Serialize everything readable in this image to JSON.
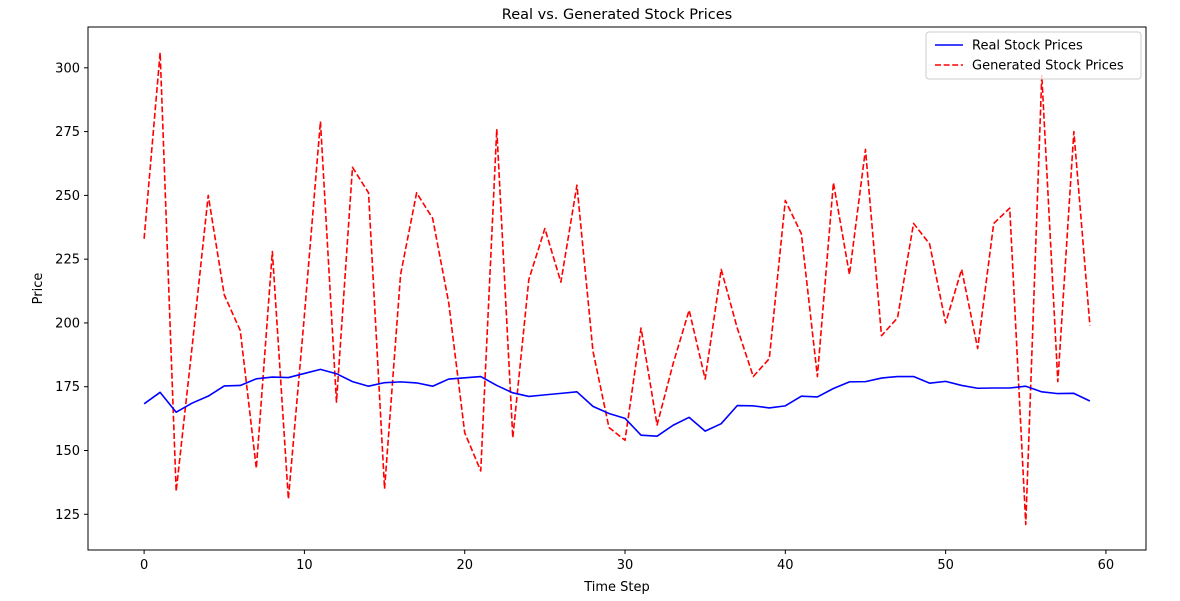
{
  "chart_data": {
    "type": "line",
    "title": "Real vs. Generated Stock Prices",
    "xlabel": "Time Step",
    "ylabel": "Price",
    "xlim": [
      -3.5,
      62.5
    ],
    "ylim": [
      111,
      316
    ],
    "xticks": [
      0,
      10,
      20,
      30,
      40,
      50,
      60
    ],
    "yticks": [
      125,
      150,
      175,
      200,
      225,
      250,
      275,
      300
    ],
    "grid": false,
    "legend_position": "top-right",
    "x": [
      0,
      1,
      2,
      3,
      4,
      5,
      6,
      7,
      8,
      9,
      10,
      11,
      12,
      13,
      14,
      15,
      16,
      17,
      18,
      19,
      20,
      21,
      22,
      23,
      24,
      25,
      26,
      27,
      28,
      29,
      30,
      31,
      32,
      33,
      34,
      35,
      36,
      37,
      38,
      39,
      40,
      41,
      42,
      43,
      44,
      45,
      46,
      47,
      48,
      49,
      50,
      51,
      52,
      53,
      54,
      55,
      56,
      57,
      58,
      59
    ],
    "series": [
      {
        "name": "Real Stock Prices",
        "color": "#0000ff",
        "style": "solid",
        "values": [
          168.3,
          172.8,
          165.0,
          168.6,
          171.3,
          175.3,
          175.5,
          178.1,
          178.8,
          178.6,
          180.2,
          181.8,
          180.1,
          177.0,
          175.2,
          176.6,
          176.9,
          176.5,
          175.2,
          178.0,
          178.5,
          179.0,
          175.5,
          172.6,
          171.2,
          171.8,
          172.4,
          173.0,
          167.3,
          164.5,
          162.6,
          156.0,
          155.6,
          159.9,
          163.0,
          157.6,
          160.5,
          167.6,
          167.5,
          166.7,
          167.5,
          171.3,
          171.0,
          174.3,
          176.9,
          177.0,
          178.4,
          179.0,
          179.0,
          176.4,
          177.1,
          175.5,
          174.4,
          174.5,
          174.5,
          175.2,
          173.0,
          172.3,
          172.4,
          169.4
        ]
      },
      {
        "name": "Generated Stock Prices",
        "color": "#ff0000",
        "style": "dashed",
        "values": [
          233,
          306,
          134,
          191,
          250,
          211,
          197,
          143,
          228,
          131,
          203,
          279,
          169,
          261,
          251,
          135,
          219,
          251,
          241,
          208,
          157,
          142,
          276,
          155,
          217,
          237,
          216,
          254,
          189,
          159,
          154,
          198,
          160,
          184,
          205,
          178,
          221,
          198,
          179,
          186,
          248,
          235,
          179,
          255,
          219,
          268,
          195,
          202,
          239,
          231,
          200,
          221,
          190,
          239,
          245,
          121,
          297,
          177,
          275,
          199
        ]
      }
    ]
  }
}
